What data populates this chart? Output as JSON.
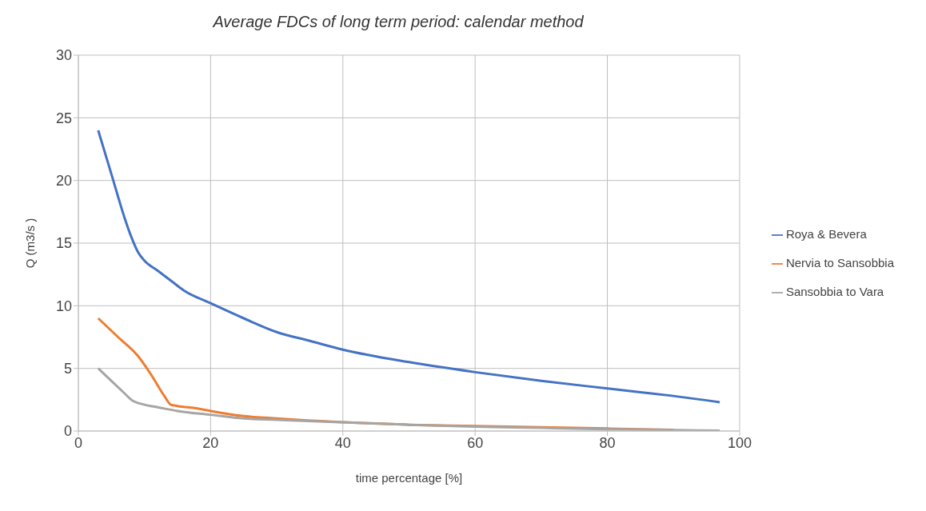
{
  "chart_data": {
    "type": "line",
    "title": "Average FDCs of long term period: calendar method",
    "xlabel": "time percentage [%]",
    "ylabel": "Q (m3/s )",
    "xlim": [
      0,
      100
    ],
    "xticks": [
      0,
      20,
      40,
      60,
      80,
      100
    ],
    "ylim": [
      0,
      30
    ],
    "yticks": [
      0,
      5,
      10,
      15,
      20,
      25,
      30
    ],
    "grid": true,
    "legend": "right",
    "marker": "none",
    "line_style": "solid",
    "series": [
      {
        "name": "Roya & Bevera",
        "color": "#4472c4",
        "x": [
          3,
          5,
          7,
          8,
          9,
          10,
          12,
          14,
          16,
          20,
          25,
          30,
          35,
          40,
          50,
          60,
          70,
          80,
          85,
          90,
          97
        ],
        "values": [
          24,
          20.5,
          17,
          15.5,
          14.3,
          13.6,
          12.8,
          12,
          11.2,
          10.2,
          9,
          7.9,
          7.2,
          6.5,
          5.5,
          4.7,
          4,
          3.4,
          3.1,
          2.8,
          2.3
        ]
      },
      {
        "name": "Nervia to Sansobbia",
        "color": "#ed7d31",
        "x": [
          3,
          6,
          9,
          11,
          13,
          14,
          15,
          18,
          20,
          25,
          30,
          40,
          50,
          60,
          70,
          80,
          90
        ],
        "values": [
          9,
          7.5,
          6,
          4.5,
          2.8,
          2.1,
          2,
          1.8,
          1.6,
          1.2,
          1,
          0.7,
          0.5,
          0.4,
          0.3,
          0.2,
          0.1
        ]
      },
      {
        "name": "Sansobbia to Vara",
        "color": "#a5a5a5",
        "x": [
          3,
          5,
          7,
          8,
          10,
          12,
          15,
          20,
          25,
          30,
          40,
          50,
          60,
          70,
          80,
          90,
          97
        ],
        "values": [
          5,
          4,
          3,
          2.5,
          2.1,
          1.9,
          1.6,
          1.3,
          1,
          0.9,
          0.7,
          0.5,
          0.35,
          0.25,
          0.15,
          0.08,
          0.03
        ]
      }
    ]
  }
}
